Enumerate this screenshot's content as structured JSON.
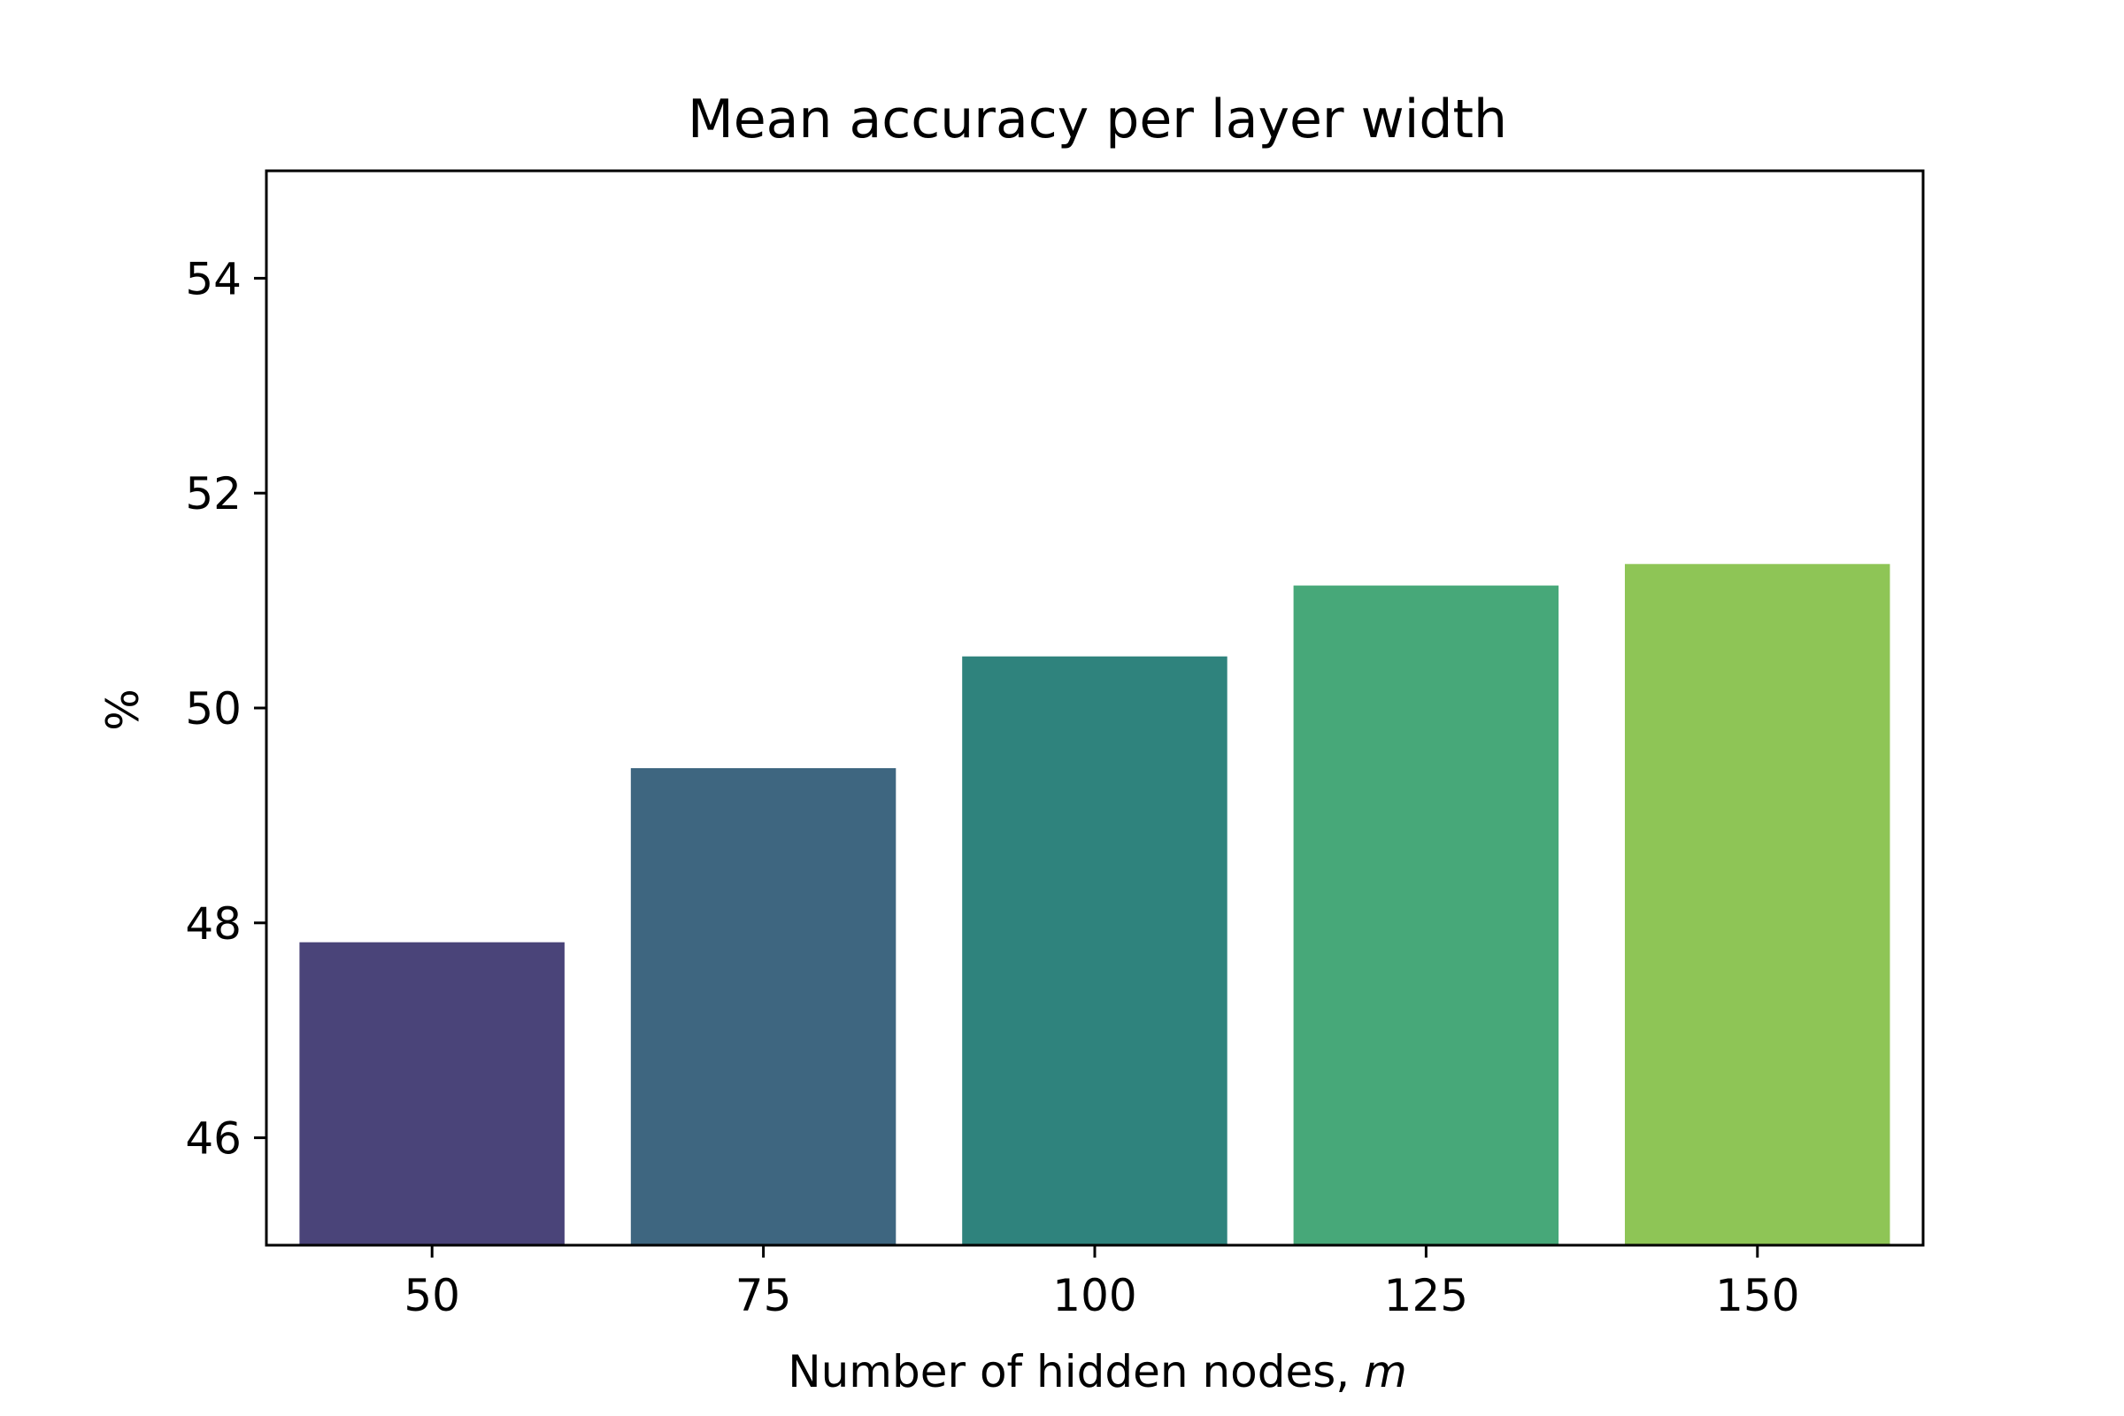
{
  "chart_data": {
    "type": "bar",
    "title": "Mean accuracy per layer width",
    "xlabel_text": "Number of hidden nodes, ",
    "xlabel_var": "m",
    "ylabel": "%",
    "categories": [
      "50",
      "75",
      "100",
      "125",
      "150"
    ],
    "values": [
      47.82,
      49.44,
      50.48,
      51.14,
      51.34
    ],
    "colors": [
      "#4a4479",
      "#3e6680",
      "#2f837d",
      "#47a879",
      "#8ec556"
    ],
    "ylim": [
      45,
      55
    ],
    "yticks": [
      46,
      48,
      50,
      52,
      54
    ],
    "grid": false,
    "legend": false
  }
}
